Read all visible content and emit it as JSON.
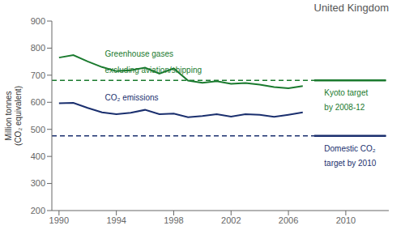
{
  "chart_data": {
    "type": "line",
    "title": "United Kingdom",
    "ylabel": [
      "Million tonnes",
      "(CO₂ equivalent)"
    ],
    "x": [
      1990,
      1991,
      1992,
      1993,
      1994,
      1995,
      1996,
      1997,
      1998,
      1999,
      2000,
      2001,
      2002,
      2003,
      2004,
      2005,
      2006,
      2007
    ],
    "series": [
      {
        "color": "#1a7a2e",
        "values": [
          765,
          774,
          751,
          730,
          715,
          718,
          728,
          706,
          725,
          680,
          672,
          678,
          668,
          671,
          665,
          656,
          652,
          660
        ]
      },
      {
        "color": "#1a2f6e",
        "values": [
          596,
          598,
          579,
          563,
          556,
          561,
          572,
          556,
          558,
          545,
          549,
          556,
          547,
          556,
          554,
          546,
          554,
          563
        ]
      }
    ],
    "xlim": [
      1989.5,
      2013
    ],
    "xticks": [
      1990,
      1994,
      1998,
      2002,
      2006,
      2010
    ],
    "ylim": [
      200,
      900
    ],
    "yticks": [
      200,
      300,
      400,
      500,
      600,
      700,
      800,
      900
    ],
    "grid": false,
    "reference_lines": [
      {
        "y": 681,
        "color": "#1a7a2e",
        "dashed": [
          1989.5,
          2012.8
        ],
        "solid": [
          2007.8,
          2012.8
        ]
      },
      {
        "y": 476,
        "color": "#1a2f6e",
        "dashed": [
          1989.5,
          2012.8
        ],
        "solid": [
          2007.8,
          2012.8
        ]
      }
    ],
    "annotations": [
      {
        "text": "Greenhouse gases",
        "x": 1993.2,
        "y": 793,
        "color": "#1a7a2e"
      },
      {
        "text": "excluding aviation/shipping",
        "x": 1993.2,
        "y": 733,
        "color": "#1a7a2e"
      },
      {
        "text": "CO₂ emissions",
        "x": 1993.2,
        "y": 632,
        "color": "#1a2f6e"
      },
      {
        "text": "Kyoto target",
        "x": 2008.5,
        "y": 650,
        "color": "#1a7a2e"
      },
      {
        "text": "by 2008-12",
        "x": 2008.5,
        "y": 595,
        "color": "#1a7a2e"
      },
      {
        "text": "Domestic CO₂",
        "x": 2008.5,
        "y": 444,
        "color": "#1a2f6e"
      },
      {
        "text": "target by 2010",
        "x": 2008.5,
        "y": 389,
        "color": "#1a2f6e"
      }
    ]
  }
}
